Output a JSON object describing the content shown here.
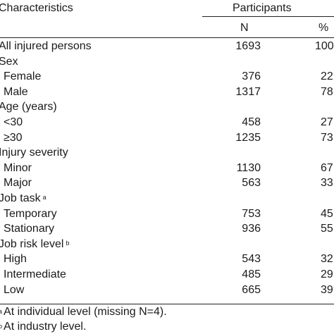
{
  "header": {
    "characteristics": "Characteristics",
    "participants": "Participants",
    "n": "N",
    "pct": "%"
  },
  "rows": [
    {
      "label": "All injured persons",
      "n": "1693",
      "pct": "100",
      "indent": false
    },
    {
      "label": "Sex",
      "n": "",
      "pct": "",
      "indent": false
    },
    {
      "label": "Female",
      "n": "376",
      "pct": "22",
      "indent": true
    },
    {
      "label": "Male",
      "n": "1317",
      "pct": "78",
      "indent": true
    },
    {
      "label": "Age (years)",
      "n": "",
      "pct": "",
      "indent": false
    },
    {
      "label": "<30",
      "n": "458",
      "pct": "27",
      "indent": true
    },
    {
      "label": "≥30",
      "n": "1235",
      "pct": "73",
      "indent": true
    },
    {
      "label": "Injury severity",
      "n": "",
      "pct": "",
      "indent": false
    },
    {
      "label": "Minor",
      "n": "1130",
      "pct": "67",
      "indent": true
    },
    {
      "label": "Major",
      "n": "563",
      "pct": "33",
      "indent": true
    },
    {
      "label": "Job task",
      "sup": "a",
      "n": "",
      "pct": "",
      "indent": false
    },
    {
      "label": "Temporary",
      "n": "753",
      "pct": "45",
      "indent": true
    },
    {
      "label": "Stationary",
      "n": "936",
      "pct": "55",
      "indent": true
    },
    {
      "label": "Job risk level",
      "sup": "b",
      "n": "",
      "pct": "",
      "indent": false
    },
    {
      "label": "High",
      "n": "543",
      "pct": "32",
      "indent": true
    },
    {
      "label": "Intermediate",
      "n": "485",
      "pct": "29",
      "indent": true
    },
    {
      "label": "Low",
      "n": "665",
      "pct": "39",
      "indent": true
    }
  ],
  "footnotes": [
    {
      "mark": "a",
      "text": "At individual level (missing N=4)."
    },
    {
      "mark": "b",
      "text": "At industry level."
    }
  ]
}
